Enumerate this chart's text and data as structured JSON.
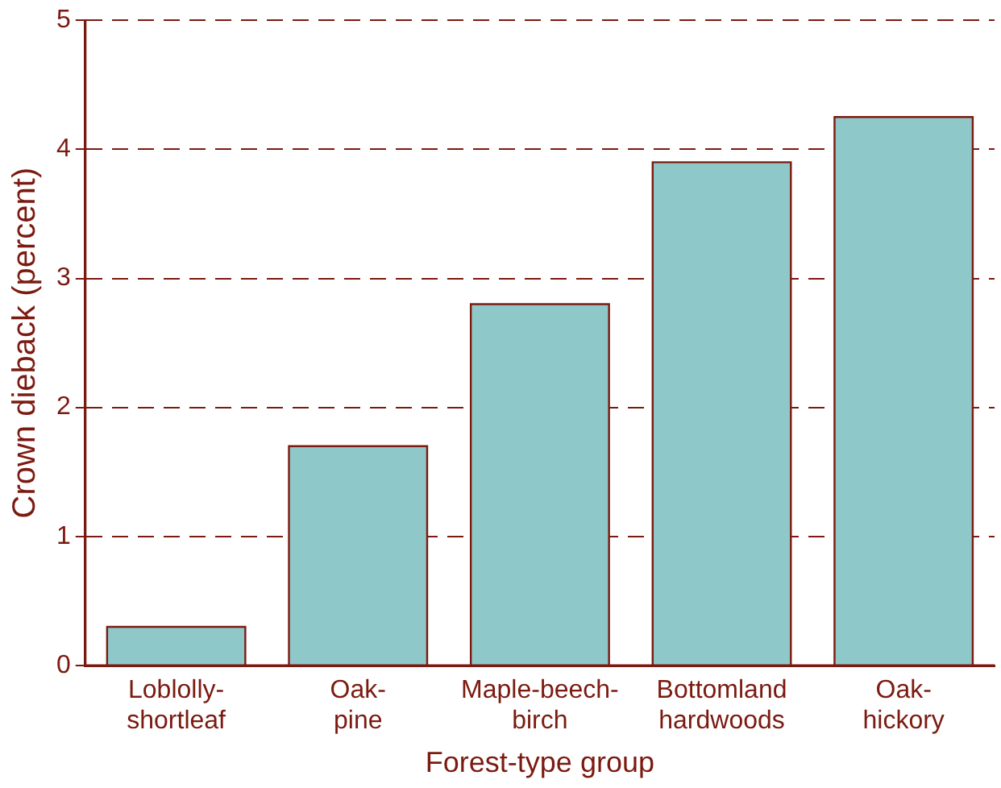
{
  "chart_data": {
    "type": "bar",
    "xlabel": "Forest-type group",
    "ylabel": "Crown dieback (percent)",
    "categories": [
      "Loblolly-\nshortleaf",
      "Oak-\npine",
      "Maple-beech-\nbirch",
      "Bottomland\nhardwoods",
      "Oak-\nhickory"
    ],
    "values": [
      0.3,
      1.7,
      2.8,
      3.9,
      4.25
    ],
    "color": "#8ec8c8",
    "ylim": [
      0,
      5
    ],
    "yticks": [
      0,
      1,
      2,
      3,
      4,
      5
    ],
    "grid": "y",
    "legend": false
  }
}
